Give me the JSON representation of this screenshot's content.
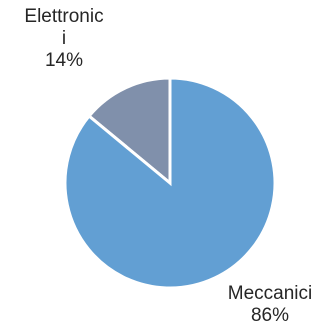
{
  "chart_data": {
    "type": "pie",
    "title": "",
    "slices": [
      {
        "name": "Elettronici",
        "label_lines": [
          "Elettronic",
          "i"
        ],
        "value": 14,
        "value_label": "14%",
        "color": "#8090ab"
      },
      {
        "name": "Meccanici",
        "label_lines": [
          "Meccanici"
        ],
        "value": 86,
        "value_label": "86%",
        "color": "#629fd3"
      }
    ],
    "start_angle_deg": 0,
    "direction": "counterclockwise",
    "slice_border_color": "#ffffff",
    "legend": "none"
  }
}
